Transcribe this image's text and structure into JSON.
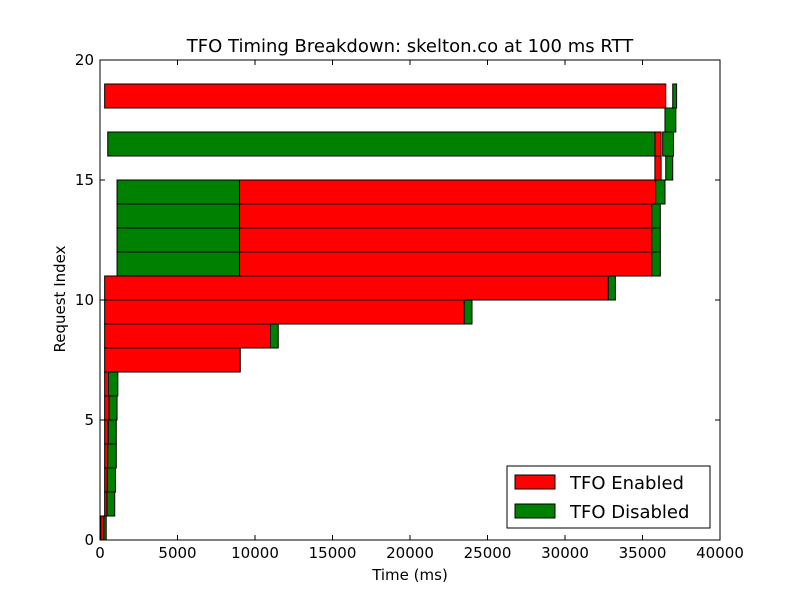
{
  "chart_data": {
    "type": "bar",
    "orientation": "horizontal",
    "title": "TFO Timing Breakdown: skelton.co at 100 ms RTT",
    "xlabel": "Time (ms)",
    "ylabel": "Request Index",
    "xlim": [
      0,
      40000
    ],
    "ylim": [
      0,
      20
    ],
    "xticks": [
      0,
      5000,
      10000,
      15000,
      20000,
      25000,
      30000,
      35000,
      40000
    ],
    "xtick_labels": [
      "0",
      "5000",
      "10000",
      "15000",
      "20000",
      "25000",
      "30000",
      "35000",
      "40000"
    ],
    "yticks": [
      0,
      5,
      10,
      15,
      20
    ],
    "ytick_labels": [
      "0",
      "5",
      "10",
      "15",
      "20"
    ],
    "grid": false,
    "legend_position": "lower-right",
    "colors": {
      "TFO Enabled": "#ff0000",
      "TFO Disabled": "#008000"
    },
    "series": [
      {
        "name": "TFO Enabled",
        "bars": [
          {
            "index": 0,
            "start": 50,
            "end": 250
          },
          {
            "index": 1,
            "start": 300,
            "end": 450
          },
          {
            "index": 2,
            "start": 300,
            "end": 470
          },
          {
            "index": 3,
            "start": 300,
            "end": 500
          },
          {
            "index": 4,
            "start": 300,
            "end": 530
          },
          {
            "index": 5,
            "start": 300,
            "end": 580
          },
          {
            "index": 6,
            "start": 300,
            "end": 550
          },
          {
            "index": 7,
            "start": 300,
            "end": 9050
          },
          {
            "index": 8,
            "start": 300,
            "end": 11000
          },
          {
            "index": 9,
            "start": 300,
            "end": 23500
          },
          {
            "index": 10,
            "start": 300,
            "end": 32800
          },
          {
            "index": 11,
            "start": 9000,
            "end": 35600
          },
          {
            "index": 12,
            "start": 9000,
            "end": 35600
          },
          {
            "index": 13,
            "start": 9000,
            "end": 35600
          },
          {
            "index": 14,
            "start": 9000,
            "end": 35850
          },
          {
            "index": 15,
            "start": 35800,
            "end": 36200
          },
          {
            "index": 16,
            "start": 35800,
            "end": 36200
          },
          {
            "index": 18,
            "start": 300,
            "end": 36500
          }
        ]
      },
      {
        "name": "TFO Disabled",
        "bars": [
          {
            "index": 0,
            "start": 250,
            "end": 400
          },
          {
            "index": 1,
            "start": 450,
            "end": 950
          },
          {
            "index": 2,
            "start": 470,
            "end": 1000
          },
          {
            "index": 3,
            "start": 500,
            "end": 1050
          },
          {
            "index": 4,
            "start": 530,
            "end": 1050
          },
          {
            "index": 5,
            "start": 580,
            "end": 1100
          },
          {
            "index": 6,
            "start": 550,
            "end": 1150
          },
          {
            "index": 8,
            "start": 11000,
            "end": 11500
          },
          {
            "index": 9,
            "start": 23500,
            "end": 24000
          },
          {
            "index": 10,
            "start": 32800,
            "end": 33250
          },
          {
            "index": 11,
            "start": 1100,
            "end": 9000
          },
          {
            "index": 11,
            "start": 35600,
            "end": 36150
          },
          {
            "index": 12,
            "start": 1100,
            "end": 9000
          },
          {
            "index": 12,
            "start": 35600,
            "end": 36150
          },
          {
            "index": 13,
            "start": 1100,
            "end": 9000
          },
          {
            "index": 13,
            "start": 35600,
            "end": 36150
          },
          {
            "index": 14,
            "start": 1100,
            "end": 9000
          },
          {
            "index": 14,
            "start": 35850,
            "end": 36450
          },
          {
            "index": 15,
            "start": 36500,
            "end": 36950
          },
          {
            "index": 16,
            "start": 500,
            "end": 35800
          },
          {
            "index": 16,
            "start": 36300,
            "end": 37000
          },
          {
            "index": 17,
            "start": 36450,
            "end": 37150
          },
          {
            "index": 18,
            "start": 36950,
            "end": 37200
          }
        ]
      }
    ]
  }
}
